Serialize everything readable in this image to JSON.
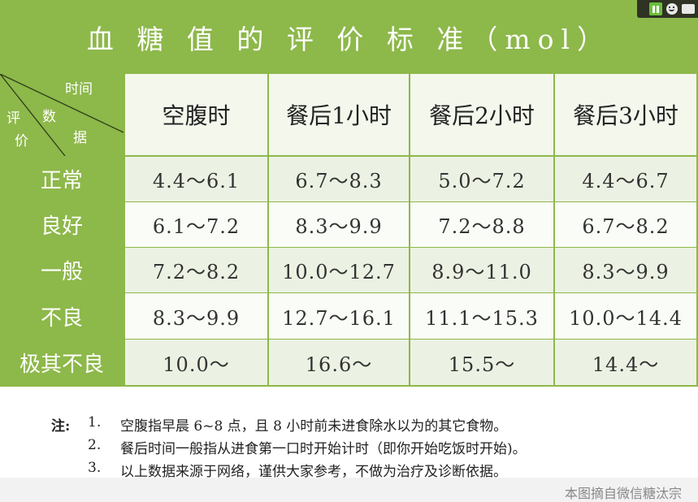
{
  "title": "血 糖 值 的 评 价 标 准（mol）",
  "header": {
    "diag_time": "时间",
    "diag_data_1": "数",
    "diag_data_2": "据",
    "diag_eval_1": "评",
    "diag_eval_2": "价",
    "columns": [
      "空腹时",
      "餐后1小时",
      "餐后2小时",
      "餐后3小时"
    ]
  },
  "rows": [
    {
      "label": "正常",
      "values": [
        "4.4～6.1",
        "6.7～8.3",
        "5.0～7.2",
        "4.4～6.7"
      ]
    },
    {
      "label": "良好",
      "values": [
        "6.1～7.2",
        "8.3～9.9",
        "7.2～8.8",
        "6.7～8.2"
      ]
    },
    {
      "label": "一般",
      "values": [
        "7.2～8.2",
        "10.0～12.7",
        "8.9～11.0",
        "8.3～9.9"
      ]
    },
    {
      "label": "不良",
      "values": [
        "8.3～9.9",
        "12.7～16.1",
        "11.1～15.3",
        "10.0～14.4"
      ]
    },
    {
      "label": "极其不良",
      "values": [
        "10.0～",
        "16.6～",
        "15.5～",
        "14.4～"
      ]
    }
  ],
  "notes": {
    "heading": "注:",
    "items": [
      {
        "num": "1.",
        "text": "空腹指早晨 6~8 点，且 8 小时前未进食除水以为的其它食物。"
      },
      {
        "num": "2.",
        "text": "餐后时间一般指从进食第一口时开始计时（即你开始吃饭时开始)。"
      },
      {
        "num": "3.",
        "text": "以上数据来源于网络，谨供大家参考，不做为治疗及诊断依据。"
      }
    ]
  },
  "source": "本图摘自微信糖汰宗",
  "overlay": {
    "icons": [
      "pause-icon",
      "smiley-icon",
      "chat-icon"
    ]
  },
  "colors": {
    "green": "#8db84a",
    "light_row": "#ecf2e3",
    "white_row": "#fafcf7"
  }
}
